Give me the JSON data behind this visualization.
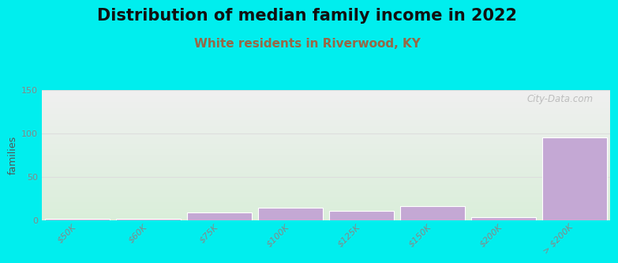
{
  "title": "Distribution of median family income in 2022",
  "subtitle": "White residents in Riverwood, KY",
  "ylabel": "families",
  "categories": [
    "$50K",
    "$60K",
    "$75K",
    "$100K",
    "$125K",
    "$150K",
    "$200K",
    "> $200K"
  ],
  "values": [
    2,
    2,
    9,
    14,
    11,
    16,
    3,
    95
  ],
  "bar_color": "#c4a8d4",
  "bar_edge_color": "#ffffff",
  "background_outer": "#00EEEE",
  "background_inner_top": "#f0f0f0",
  "background_inner_bottom": "#ddeedd",
  "ylim": [
    0,
    150
  ],
  "yticks": [
    0,
    50,
    100,
    150
  ],
  "title_fontsize": 15,
  "subtitle_fontsize": 11,
  "subtitle_color": "#996644",
  "watermark": "City-Data.com",
  "grid_color": "#dddddd",
  "tick_label_color": "#888888"
}
